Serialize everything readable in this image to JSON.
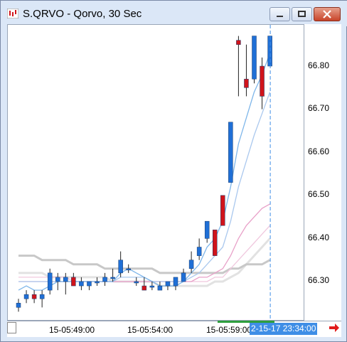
{
  "window": {
    "title": "S.QRVO - Qorvo, 30 Sec"
  },
  "icons": {
    "app": "app-chart-icon",
    "minimize": "minimize-icon",
    "maximize": "maximize-icon",
    "close": "close-icon",
    "scroll_right": "scroll-right-arrow-icon"
  },
  "colors": {
    "up": "#1f6fd6",
    "down": "#d0141b",
    "cursor": "#3f8ee6"
  },
  "price_axis": {
    "labels": [
      "66.80",
      "66.70",
      "66.60",
      "66.50",
      "66.40",
      "66.30"
    ]
  },
  "time_axis": {
    "labels": [
      "15-05:49:00",
      "15-05:54:00",
      "15-05:59:00"
    ],
    "cursor_label": "2-15-17 23:34:00"
  },
  "chart_data": {
    "type": "candlestick",
    "interval": "30 Sec",
    "ylim": [
      66.22,
      66.9
    ],
    "candles": [
      {
        "o": 66.24,
        "h": 66.26,
        "l": 66.23,
        "c": 66.25
      },
      {
        "o": 66.26,
        "h": 66.28,
        "l": 66.25,
        "c": 66.27
      },
      {
        "o": 66.27,
        "h": 66.28,
        "l": 66.25,
        "c": 66.26
      },
      {
        "o": 66.26,
        "h": 66.28,
        "l": 66.24,
        "c": 66.27
      },
      {
        "o": 66.28,
        "h": 66.33,
        "l": 66.27,
        "c": 66.32
      },
      {
        "o": 66.3,
        "h": 66.32,
        "l": 66.28,
        "c": 66.31
      },
      {
        "o": 66.3,
        "h": 66.32,
        "l": 66.27,
        "c": 66.31
      },
      {
        "o": 66.31,
        "h": 66.32,
        "l": 66.29,
        "c": 66.29
      },
      {
        "o": 66.29,
        "h": 66.31,
        "l": 66.28,
        "c": 66.3
      },
      {
        "o": 66.29,
        "h": 66.3,
        "l": 66.28,
        "c": 66.3
      },
      {
        "o": 66.3,
        "h": 66.31,
        "l": 66.29,
        "c": 66.3
      },
      {
        "o": 66.3,
        "h": 66.32,
        "l": 66.29,
        "c": 66.31
      },
      {
        "o": 66.31,
        "h": 66.33,
        "l": 66.3,
        "c": 66.31
      },
      {
        "o": 66.32,
        "h": 66.37,
        "l": 66.31,
        "c": 66.35
      },
      {
        "o": 66.33,
        "h": 66.34,
        "l": 66.32,
        "c": 66.33
      },
      {
        "o": 66.3,
        "h": 66.31,
        "l": 66.29,
        "c": 66.3
      },
      {
        "o": 66.29,
        "h": 66.31,
        "l": 66.28,
        "c": 66.28
      },
      {
        "o": 66.29,
        "h": 66.3,
        "l": 66.28,
        "c": 66.29
      },
      {
        "o": 66.28,
        "h": 66.3,
        "l": 66.28,
        "c": 66.29
      },
      {
        "o": 66.29,
        "h": 66.3,
        "l": 66.28,
        "c": 66.3
      },
      {
        "o": 66.29,
        "h": 66.31,
        "l": 66.28,
        "c": 66.31
      },
      {
        "o": 66.3,
        "h": 66.33,
        "l": 66.3,
        "c": 66.32
      },
      {
        "o": 66.33,
        "h": 66.37,
        "l": 66.32,
        "c": 66.35
      },
      {
        "o": 66.36,
        "h": 66.4,
        "l": 66.35,
        "c": 66.38
      },
      {
        "o": 66.4,
        "h": 66.44,
        "l": 66.39,
        "c": 66.44
      },
      {
        "o": 66.42,
        "h": 66.42,
        "l": 66.36,
        "c": 66.36
      },
      {
        "o": 66.5,
        "h": 66.5,
        "l": 66.43,
        "c": 66.43
      },
      {
        "o": 66.53,
        "h": 66.67,
        "l": 66.53,
        "c": 66.67
      },
      {
        "o": 66.86,
        "h": 66.87,
        "l": 66.73,
        "c": 66.85
      },
      {
        "o": 66.77,
        "h": 66.85,
        "l": 66.73,
        "c": 66.75
      },
      {
        "o": 66.77,
        "h": 66.87,
        "l": 66.76,
        "c": 66.87
      },
      {
        "o": 66.8,
        "h": 66.82,
        "l": 66.7,
        "c": 66.73
      },
      {
        "o": 66.8,
        "h": 66.87,
        "l": 66.8,
        "c": 66.87
      }
    ],
    "moving_averages": [
      {
        "name": "",
        "color": "#7eb6ea",
        "values": [
          66.28,
          66.29,
          66.28,
          66.28,
          66.29,
          66.3,
          66.3,
          66.3,
          66.3,
          66.3,
          66.3,
          66.3,
          66.3,
          66.32,
          66.33,
          66.32,
          66.31,
          66.3,
          66.29,
          66.29,
          66.29,
          66.3,
          66.32,
          66.34,
          66.38,
          66.4,
          66.44,
          66.52,
          66.62,
          66.68,
          66.74,
          66.78,
          66.83
        ]
      },
      {
        "name": "",
        "color": "#aac8ee",
        "values": [
          66.3,
          66.3,
          66.3,
          66.3,
          66.3,
          66.3,
          66.3,
          66.3,
          66.3,
          66.3,
          66.3,
          66.3,
          66.3,
          66.31,
          66.31,
          66.31,
          66.31,
          66.3,
          66.3,
          66.3,
          66.3,
          66.3,
          66.31,
          66.32,
          66.34,
          66.36,
          66.38,
          66.44,
          66.52,
          66.58,
          66.64,
          66.69,
          66.74
        ]
      },
      {
        "name": "",
        "color": "#e8a0c8",
        "values": [
          66.3,
          66.3,
          66.3,
          66.3,
          66.3,
          66.3,
          66.3,
          66.3,
          66.3,
          66.3,
          66.3,
          66.3,
          66.3,
          66.3,
          66.3,
          66.3,
          66.3,
          66.3,
          66.3,
          66.3,
          66.3,
          66.3,
          66.3,
          66.31,
          66.31,
          66.32,
          66.33,
          66.36,
          66.4,
          66.43,
          66.45,
          66.47,
          66.48
        ]
      },
      {
        "name": "",
        "color": "#f0c8de",
        "values": [
          66.31,
          66.31,
          66.31,
          66.31,
          66.31,
          66.31,
          66.31,
          66.3,
          66.3,
          66.3,
          66.3,
          66.3,
          66.3,
          66.3,
          66.3,
          66.3,
          66.3,
          66.3,
          66.3,
          66.3,
          66.3,
          66.3,
          66.3,
          66.3,
          66.3,
          66.31,
          66.31,
          66.33,
          66.35,
          66.37,
          66.39,
          66.41,
          66.43
        ]
      },
      {
        "name": "",
        "color": "#c8c8c8",
        "values": [
          66.36,
          66.36,
          66.36,
          66.35,
          66.35,
          66.35,
          66.35,
          66.34,
          66.34,
          66.34,
          66.34,
          66.33,
          66.33,
          66.33,
          66.33,
          66.33,
          66.33,
          66.33,
          66.32,
          66.32,
          66.32,
          66.32,
          66.32,
          66.32,
          66.32,
          66.32,
          66.32,
          66.33,
          66.33,
          66.34,
          66.34,
          66.34,
          66.35
        ]
      },
      {
        "name": "",
        "color": "#e2e2e2",
        "values": [
          66.32,
          66.32,
          66.32,
          66.32,
          66.31,
          66.31,
          66.31,
          66.31,
          66.31,
          66.31,
          66.31,
          66.31,
          66.3,
          66.3,
          66.3,
          66.3,
          66.3,
          66.3,
          66.29,
          66.29,
          66.29,
          66.29,
          66.29,
          66.29,
          66.29,
          66.3,
          66.3,
          66.31,
          66.32,
          66.34,
          66.36,
          66.38,
          66.4
        ]
      }
    ]
  }
}
